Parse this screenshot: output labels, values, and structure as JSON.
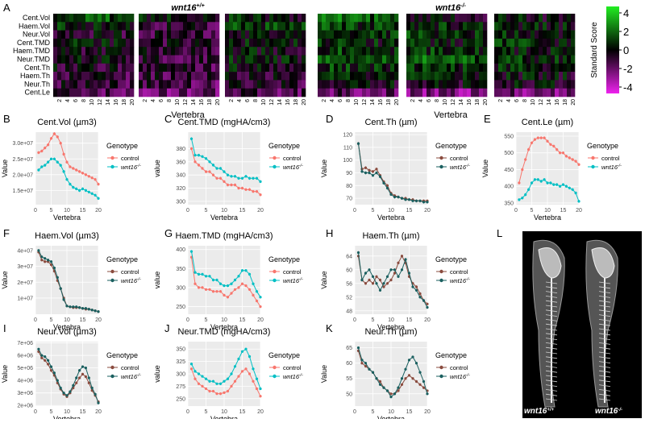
{
  "figure": {
    "panel_letters": [
      "A",
      "B",
      "C",
      "D",
      "E",
      "F",
      "G",
      "H",
      "I",
      "J",
      "K",
      "L"
    ],
    "heatmap": {
      "group_titles": [
        "wnt16",
        "wnt16"
      ],
      "group_title_sup": [
        "+/+",
        "-/-"
      ],
      "row_labels": [
        "Cent.Vol",
        "Haem.Vol",
        "Neur.Vol",
        "Cent.TMD",
        "Haem.TMD",
        "Neur.TMD",
        "Cent.Th",
        "Haem.Th",
        "Neur.Th",
        "Cent.Le"
      ],
      "x_ticks": [
        "2",
        "4",
        "6",
        "8",
        "10",
        "12",
        "14",
        "16",
        "18",
        "20"
      ],
      "x_label_left": "Vertebra",
      "x_label_right": "Vertebra",
      "colorbar_title": "Standard Score",
      "colorbar_ticks": [
        "4",
        "2",
        "0",
        "-2",
        "-4"
      ],
      "colors": {
        "low": "#ee22ee",
        "mid": "#000000",
        "high": "#22ee22"
      }
    },
    "image_panel": {
      "labels": [
        "wnt16",
        "wnt16"
      ],
      "label_sups": [
        "+/+",
        "-/-"
      ]
    },
    "legend": {
      "title": "Genotype",
      "control": "control",
      "mutant": "wnt16",
      "mutant_sup": "-/-"
    },
    "colors": {
      "control_red": "#f8766d",
      "mutant_teal": "#00bfc4",
      "control_brown": "#8a4b3e",
      "mutant_dark": "#1a5f5f",
      "panel_bg": "#ebebeb",
      "grid": "#ffffff"
    }
  },
  "chart_data": [
    {
      "panel": "B",
      "type": "line",
      "title": "Cent.Vol (µm3)",
      "xlabel": "Vertebra",
      "ylabel": "Value",
      "xlim": [
        0,
        20
      ],
      "ylim": [
        10500000.0,
        33500000.0
      ],
      "yticks": [
        15000000.0,
        20000000.0,
        25000000.0,
        30000000.0
      ],
      "ytick_labels": [
        "1.5e+07",
        "2.0e+07",
        "2.5e+07",
        "3.0e+07"
      ],
      "xticks": [
        "0",
        "5",
        "10",
        "15",
        "20"
      ],
      "palette": "light",
      "series": [
        {
          "name": "control",
          "values": [
            27000000.0,
            27500000.0,
            28500000.0,
            29500000.0,
            31500000.0,
            33000000.0,
            32000000.0,
            30000000.0,
            26500000.0,
            24000000.0,
            22500000.0,
            22000000.0,
            21500000.0,
            21000000.0,
            20500000.0,
            20000000.0,
            19500000.0,
            19000000.0,
            18500000.0,
            17000000.0
          ]
        },
        {
          "name": "wnt16",
          "values": [
            21500000.0,
            22500000.0,
            23000000.0,
            24000000.0,
            25000000.0,
            25000000.0,
            24000000.0,
            23000000.0,
            21000000.0,
            18500000.0,
            17000000.0,
            16000000.0,
            15500000.0,
            15000000.0,
            15500000.0,
            15000000.0,
            14500000.0,
            14000000.0,
            13500000.0,
            12500000.0
          ]
        }
      ]
    },
    {
      "panel": "C",
      "type": "line",
      "title": "Cent.TMD (mgHA/cm3)",
      "xlabel": "Vertebra",
      "ylabel": "value",
      "xlim": [
        0,
        20
      ],
      "ylim": [
        295,
        405
      ],
      "yticks": [
        300,
        320,
        340,
        360,
        380
      ],
      "ytick_labels": [
        "300",
        "320",
        "340",
        "360",
        "380"
      ],
      "xticks": [
        "0",
        "5",
        "10",
        "15",
        "20"
      ],
      "palette": "light",
      "series": [
        {
          "name": "control",
          "values": [
            380,
            360,
            355,
            350,
            345,
            345,
            340,
            335,
            335,
            330,
            325,
            325,
            325,
            320,
            320,
            318,
            318,
            315,
            315,
            310
          ]
        },
        {
          "name": "wnt16",
          "values": [
            395,
            370,
            370,
            368,
            365,
            360,
            355,
            350,
            350,
            345,
            340,
            338,
            338,
            335,
            335,
            338,
            335,
            335,
            335,
            330
          ]
        }
      ]
    },
    {
      "panel": "D",
      "type": "line",
      "title": "Cent.Th (µm)",
      "xlabel": "Vertebra",
      "ylabel": "Value",
      "xlim": [
        0,
        20
      ],
      "ylim": [
        65,
        122
      ],
      "yticks": [
        70,
        80,
        90,
        100,
        110,
        120
      ],
      "ytick_labels": [
        "70",
        "80",
        "90",
        "100",
        "110",
        "120"
      ],
      "xticks": [
        "0",
        "5",
        "10",
        "15",
        "20"
      ],
      "palette": "dark",
      "series": [
        {
          "name": "control",
          "values": [
            113,
            93,
            94,
            92,
            91,
            93,
            88,
            83,
            80,
            74,
            72,
            71,
            70,
            70,
            69,
            69,
            68,
            68,
            68,
            68
          ]
        },
        {
          "name": "wnt16",
          "values": [
            113,
            91,
            90,
            90,
            88,
            90,
            87,
            82,
            78,
            73,
            71,
            71,
            70,
            69,
            69,
            68,
            68,
            68,
            67,
            67
          ]
        }
      ]
    },
    {
      "panel": "E",
      "type": "line",
      "title": "Cent.Le (µm)",
      "xlabel": "Vertebra",
      "ylabel": "Value",
      "xlim": [
        0,
        20
      ],
      "ylim": [
        345,
        562
      ],
      "yticks": [
        350,
        400,
        450,
        500,
        550
      ],
      "ytick_labels": [
        "350",
        "400",
        "450",
        "500",
        "550"
      ],
      "xticks": [
        "0",
        "5",
        "10",
        "15",
        "20"
      ],
      "palette": "light",
      "series": [
        {
          "name": "control",
          "values": [
            410,
            450,
            480,
            510,
            530,
            540,
            545,
            545,
            545,
            535,
            525,
            520,
            510,
            500,
            500,
            490,
            485,
            480,
            475,
            465
          ]
        },
        {
          "name": "wnt16",
          "values": [
            360,
            365,
            375,
            390,
            410,
            420,
            420,
            415,
            420,
            410,
            410,
            405,
            405,
            400,
            405,
            400,
            395,
            390,
            380,
            355
          ]
        }
      ]
    },
    {
      "panel": "F",
      "type": "line",
      "title": "Haem.Vol (µm3)",
      "xlabel": "Vertebra",
      "ylabel": "Value",
      "xlim": [
        0,
        20
      ],
      "ylim": [
        -200000.0,
        43000000.0
      ],
      "yticks": [
        10000000.0,
        20000000.0,
        30000000.0,
        40000000.0
      ],
      "ytick_labels": [
        "1e+07",
        "2e+07",
        "3e+07",
        "4e+07"
      ],
      "xticks": [
        "0",
        "5",
        "10",
        "15",
        "20"
      ],
      "palette": "dark",
      "series": [
        {
          "name": "control",
          "values": [
            39000000.0,
            34000000.0,
            33000000.0,
            33000000.0,
            31000000.0,
            27000000.0,
            21000000.0,
            16000000.0,
            10000000.0,
            5000000.0,
            4500000.0,
            4000000.0,
            4000000.0,
            4000000.0,
            3500000.0,
            3000000.0,
            3000000.0,
            2500000.0,
            2000000.0,
            1500000.0
          ]
        },
        {
          "name": "wnt16",
          "values": [
            40000000.0,
            36000000.0,
            35000000.0,
            34000000.0,
            33000000.0,
            29000000.0,
            23000000.0,
            16000000.0,
            9000000.0,
            5000000.0,
            4500000.0,
            4500000.0,
            4500000.0,
            4000000.0,
            3500000.0,
            3500000.0,
            3000000.0,
            2500000.0,
            2000000.0,
            1500000.0
          ]
        }
      ]
    },
    {
      "panel": "G",
      "type": "line",
      "title": "Haem.TMD (mgHA/cm3)",
      "xlabel": "Vertebra",
      "ylabel": "value",
      "xlim": [
        0,
        20
      ],
      "ylim": [
        230,
        410
      ],
      "yticks": [
        250,
        300,
        350,
        400
      ],
      "ytick_labels": [
        "250",
        "300",
        "350",
        "400"
      ],
      "xticks": [
        "0",
        "5",
        "10",
        "15",
        "20"
      ],
      "palette": "light",
      "series": [
        {
          "name": "control",
          "values": [
            380,
            310,
            300,
            300,
            295,
            295,
            290,
            290,
            290,
            280,
            275,
            285,
            295,
            300,
            310,
            305,
            295,
            280,
            265,
            250
          ]
        },
        {
          "name": "wnt16",
          "values": [
            395,
            340,
            335,
            335,
            330,
            330,
            320,
            320,
            310,
            305,
            305,
            310,
            320,
            330,
            345,
            345,
            335,
            310,
            290,
            275
          ]
        }
      ]
    },
    {
      "panel": "H",
      "type": "line",
      "title": "Haem.Th (µm)",
      "xlabel": "Vertebra",
      "ylabel": "Value",
      "xlim": [
        0,
        20
      ],
      "ylim": [
        47,
        67
      ],
      "yticks": [
        48,
        52,
        56,
        60,
        64
      ],
      "ytick_labels": [
        "48",
        "52",
        "56",
        "60",
        "64"
      ],
      "xticks": [
        "0",
        "5",
        "10",
        "15",
        "20"
      ],
      "palette": "dark",
      "series": [
        {
          "name": "control",
          "values": [
            64,
            57,
            56,
            57,
            56,
            58,
            57,
            55,
            56,
            57,
            59,
            62,
            64,
            62,
            58,
            56,
            55,
            53,
            51,
            50
          ]
        },
        {
          "name": "wnt16",
          "values": [
            65,
            57,
            59,
            60,
            58,
            56,
            54,
            56,
            58,
            60,
            60,
            58,
            60,
            63,
            59,
            55,
            54,
            52,
            51,
            49
          ]
        }
      ]
    },
    {
      "panel": "I",
      "type": "line",
      "title": "Neur.Vol (µm3)",
      "xlabel": "Vertebra",
      "ylabel": "Value",
      "xlim": [
        0,
        20
      ],
      "ylim": [
        1950000.0,
        7100000.0
      ],
      "yticks": [
        2000000.0,
        3000000.0,
        4000000.0,
        5000000.0,
        6000000.0,
        7000000.0
      ],
      "ytick_labels": [
        "2e+06",
        "3e+06",
        "4e+06",
        "5e+06",
        "6e+06",
        "7e+06"
      ],
      "xticks": [
        "0",
        "5",
        "10",
        "15",
        "20"
      ],
      "palette": "dark",
      "series": [
        {
          "name": "control",
          "values": [
            6300000.0,
            5800000.0,
            5600000.0,
            5300000.0,
            4800000.0,
            4400000.0,
            3800000.0,
            3300000.0,
            2900000.0,
            2700000.0,
            3000000.0,
            3400000.0,
            3800000.0,
            4200000.0,
            4500000.0,
            4300000.0,
            3800000.0,
            3200000.0,
            2800000.0,
            2300000.0
          ]
        },
        {
          "name": "wnt16",
          "values": [
            6500000.0,
            6000000.0,
            5900000.0,
            5600000.0,
            5100000.0,
            4600000.0,
            4000000.0,
            3400000.0,
            3000000.0,
            2800000.0,
            3100000.0,
            3600000.0,
            4200000.0,
            4800000.0,
            5100000.0,
            5000000.0,
            4200000.0,
            3400000.0,
            2900000.0,
            2200000.0
          ]
        }
      ]
    },
    {
      "panel": "J",
      "type": "line",
      "title": "Neur.TMD (mgHA/cm3)",
      "xlabel": "Vertebra",
      "ylabel": "value",
      "xlim": [
        0,
        20
      ],
      "ylim": [
        235,
        365
      ],
      "yticks": [
        250,
        275,
        300,
        325,
        350
      ],
      "ytick_labels": [
        "250",
        "275",
        "300",
        "325",
        "350"
      ],
      "xticks": [
        "0",
        "5",
        "10",
        "15",
        "20"
      ],
      "palette": "light",
      "series": [
        {
          "name": "control",
          "values": [
            310,
            290,
            280,
            275,
            270,
            265,
            265,
            260,
            260,
            262,
            265,
            275,
            285,
            295,
            305,
            310,
            300,
            285,
            270,
            255
          ]
        },
        {
          "name": "wnt16",
          "values": [
            320,
            305,
            300,
            295,
            290,
            285,
            285,
            280,
            280,
            285,
            290,
            300,
            315,
            330,
            345,
            350,
            335,
            310,
            290,
            270
          ]
        }
      ]
    },
    {
      "panel": "K",
      "type": "line",
      "title": "Neur.Th (µm)",
      "xlabel": "Vertebra",
      "ylabel": "Value",
      "xlim": [
        0,
        20
      ],
      "ylim": [
        46,
        67
      ],
      "yticks": [
        50,
        55,
        60,
        65
      ],
      "ytick_labels": [
        "50",
        "55",
        "60",
        "65"
      ],
      "xticks": [
        "0",
        "5",
        "10",
        "15",
        "20"
      ],
      "palette": "dark",
      "series": [
        {
          "name": "control",
          "values": [
            64,
            60,
            59,
            58,
            57,
            55,
            54,
            52,
            51,
            50,
            50,
            51,
            53,
            55,
            56,
            55,
            54,
            53,
            52,
            51
          ]
        },
        {
          "name": "wnt16",
          "values": [
            65,
            61,
            60,
            58,
            57,
            55,
            53,
            52,
            51,
            49,
            50,
            52,
            55,
            58,
            61,
            62,
            60,
            57,
            54,
            50
          ]
        }
      ]
    }
  ]
}
